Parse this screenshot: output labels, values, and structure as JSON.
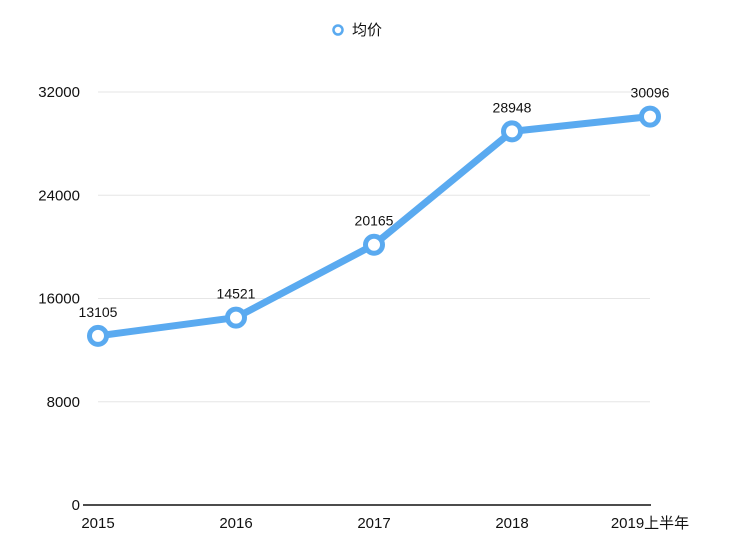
{
  "chart_data": {
    "type": "line",
    "categories": [
      "2015",
      "2016",
      "2017",
      "2018",
      "2019上半年"
    ],
    "series": [
      {
        "name": "均价",
        "values": [
          13105,
          14521,
          20165,
          28948,
          30096
        ],
        "color": "#5aaaf0"
      }
    ],
    "data_labels": [
      "13105",
      "14521",
      "20165",
      "28948",
      "30096"
    ],
    "y_ticks": [
      0,
      8000,
      16000,
      24000,
      32000
    ],
    "ylim": [
      0,
      32000
    ],
    "grid": true,
    "legend": "top-center"
  }
}
